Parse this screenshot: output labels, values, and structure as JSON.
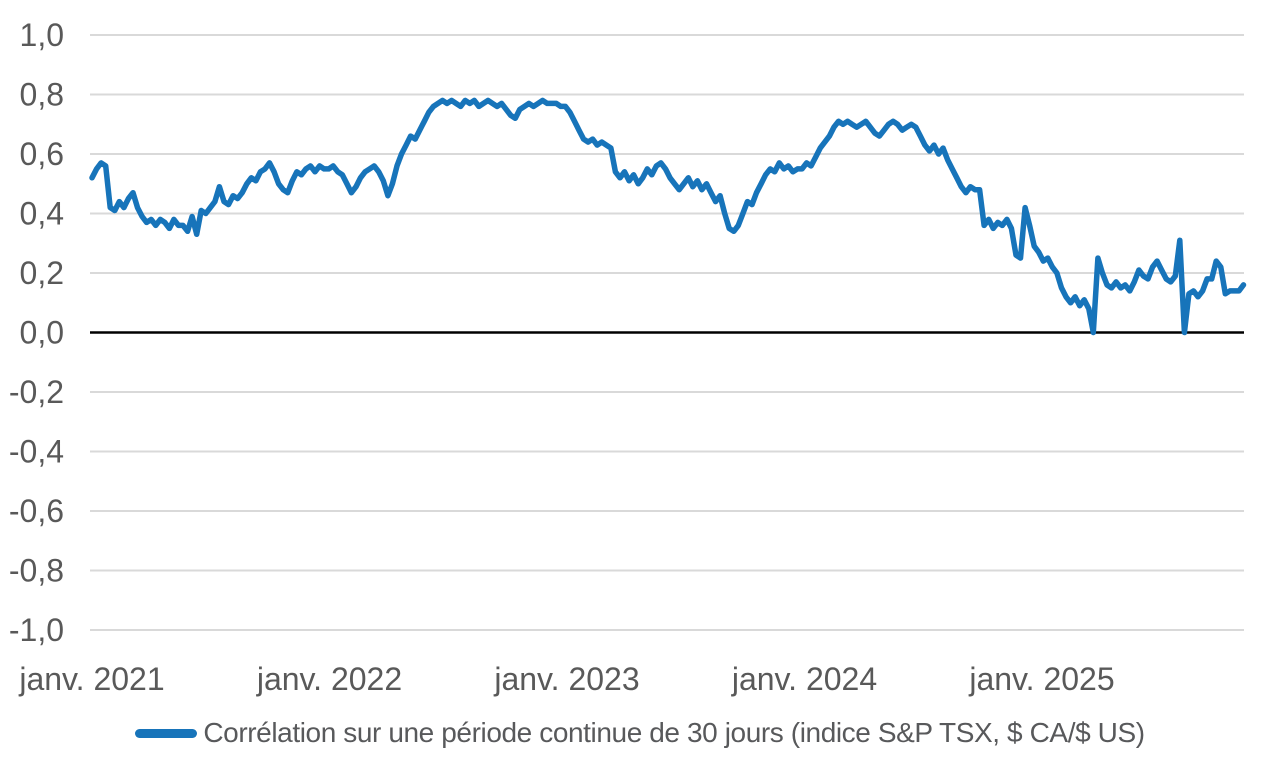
{
  "chart_data": {
    "type": "line",
    "grid": true,
    "legend_position": "bottom",
    "ylim": [
      -1.0,
      1.0
    ],
    "x_tick_labels": [
      "janv. 2021",
      "janv. 2022",
      "janv. 2023",
      "janv. 2024",
      "janv. 2025"
    ],
    "y_ticks": [
      {
        "value": 1.0,
        "label": "1,0"
      },
      {
        "value": 0.8,
        "label": "0,8"
      },
      {
        "value": 0.6,
        "label": "0,6"
      },
      {
        "value": 0.4,
        "label": "0,4"
      },
      {
        "value": 0.2,
        "label": "0,2"
      },
      {
        "value": 0.0,
        "label": "0,0"
      },
      {
        "value": -0.2,
        "label": "-0,2"
      },
      {
        "value": -0.4,
        "label": "-0,4"
      },
      {
        "value": -0.6,
        "label": "-0,6"
      },
      {
        "value": -0.8,
        "label": "-0,8"
      },
      {
        "value": -1.0,
        "label": "-1,0"
      }
    ],
    "colors": {
      "line": "#1774BA",
      "grid": "#D9D9D9",
      "zero_line": "#000000",
      "tick_text": "#595959",
      "legend_text": "#58595B"
    },
    "frequency": "weekly",
    "x_start_label": "janv. 2021",
    "series": [
      {
        "name": "Corrélation sur une période continue de 30 jours (indice S&P TSX, $ CA/$ US)",
        "color": "#1774BA",
        "values": [
          0.52,
          0.55,
          0.57,
          0.56,
          0.42,
          0.41,
          0.44,
          0.42,
          0.45,
          0.47,
          0.42,
          0.39,
          0.37,
          0.38,
          0.36,
          0.38,
          0.37,
          0.35,
          0.38,
          0.36,
          0.36,
          0.34,
          0.39,
          0.33,
          0.41,
          0.4,
          0.42,
          0.44,
          0.49,
          0.44,
          0.43,
          0.46,
          0.45,
          0.47,
          0.5,
          0.52,
          0.51,
          0.54,
          0.55,
          0.57,
          0.54,
          0.5,
          0.48,
          0.47,
          0.51,
          0.54,
          0.53,
          0.55,
          0.56,
          0.54,
          0.56,
          0.55,
          0.55,
          0.56,
          0.54,
          0.53,
          0.5,
          0.47,
          0.49,
          0.52,
          0.54,
          0.55,
          0.56,
          0.54,
          0.51,
          0.46,
          0.5,
          0.56,
          0.6,
          0.63,
          0.66,
          0.65,
          0.68,
          0.71,
          0.74,
          0.76,
          0.77,
          0.78,
          0.77,
          0.78,
          0.77,
          0.76,
          0.78,
          0.77,
          0.78,
          0.76,
          0.77,
          0.78,
          0.77,
          0.76,
          0.77,
          0.75,
          0.73,
          0.72,
          0.75,
          0.76,
          0.77,
          0.76,
          0.77,
          0.78,
          0.77,
          0.77,
          0.77,
          0.76,
          0.76,
          0.74,
          0.71,
          0.68,
          0.65,
          0.64,
          0.65,
          0.63,
          0.64,
          0.63,
          0.62,
          0.54,
          0.52,
          0.54,
          0.51,
          0.53,
          0.5,
          0.52,
          0.55,
          0.53,
          0.56,
          0.57,
          0.55,
          0.52,
          0.5,
          0.48,
          0.5,
          0.52,
          0.49,
          0.51,
          0.48,
          0.5,
          0.47,
          0.44,
          0.46,
          0.4,
          0.35,
          0.34,
          0.36,
          0.4,
          0.44,
          0.43,
          0.47,
          0.5,
          0.53,
          0.55,
          0.54,
          0.57,
          0.55,
          0.56,
          0.54,
          0.55,
          0.55,
          0.57,
          0.56,
          0.59,
          0.62,
          0.64,
          0.66,
          0.69,
          0.71,
          0.7,
          0.71,
          0.7,
          0.69,
          0.7,
          0.71,
          0.69,
          0.67,
          0.66,
          0.68,
          0.7,
          0.71,
          0.7,
          0.68,
          0.69,
          0.7,
          0.69,
          0.66,
          0.63,
          0.61,
          0.63,
          0.6,
          0.62,
          0.58,
          0.55,
          0.52,
          0.49,
          0.47,
          0.49,
          0.48,
          0.48,
          0.36,
          0.38,
          0.35,
          0.37,
          0.36,
          0.38,
          0.35,
          0.26,
          0.25,
          0.42,
          0.36,
          0.29,
          0.27,
          0.24,
          0.25,
          0.22,
          0.2,
          0.15,
          0.12,
          0.1,
          0.12,
          0.09,
          0.11,
          0.08,
          0.0,
          0.25,
          0.2,
          0.16,
          0.15,
          0.17,
          0.15,
          0.16,
          0.14,
          0.17,
          0.21,
          0.19,
          0.18,
          0.22,
          0.24,
          0.21,
          0.18,
          0.17,
          0.19,
          0.31,
          0.0,
          0.13,
          0.14,
          0.12,
          0.14,
          0.18,
          0.18,
          0.24,
          0.22,
          0.13,
          0.14,
          0.14,
          0.14,
          0.16
        ]
      }
    ]
  }
}
